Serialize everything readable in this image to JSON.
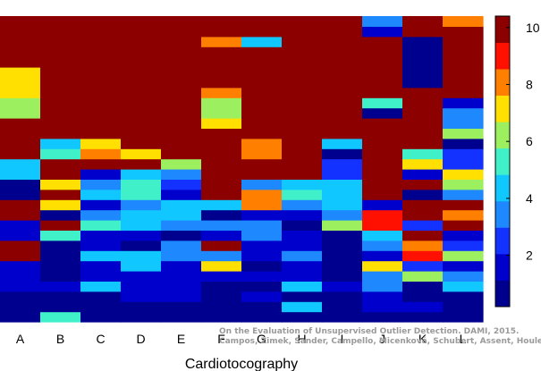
{
  "chart_data": {
    "type": "heatmap",
    "title": "",
    "xlabel": "Cardiotocography",
    "ylabel": "",
    "categories": [
      "A",
      "B",
      "C",
      "D",
      "E",
      "F",
      "G",
      "H",
      "I",
      "J",
      "K",
      "L"
    ],
    "colorbar": {
      "min": 0.2,
      "max": 10.4,
      "ticks": [
        2,
        4,
        6,
        8,
        10
      ],
      "colors": [
        "#00008f",
        "#0000cc",
        "#1432ff",
        "#1e88ff",
        "#10c8ff",
        "#40f0c8",
        "#9cf060",
        "#ffe000",
        "#ff8000",
        "#ff1000",
        "#8c0000"
      ]
    },
    "row_count": 30,
    "columns": [
      [
        0.2,
        0.2,
        0.2,
        1.5,
        1.5,
        1.5,
        10.4,
        10.4,
        2,
        2,
        10.4,
        10,
        0.2,
        0.2,
        4.7,
        4,
        10.4,
        10.4,
        10.4,
        10.4,
        6,
        6,
        7.5,
        7.5,
        7.5,
        10.4,
        10.4,
        10.4,
        10,
        10.4
      ],
      [
        5,
        0.4,
        1,
        1.2,
        1,
        0.7,
        0.7,
        0.8,
        5,
        10.4,
        0.4,
        7,
        10.4,
        6.7,
        10.4,
        10.4,
        5,
        4.5,
        10.4,
        10.4,
        10.4,
        10.4,
        10.4,
        10.4,
        10.4,
        9.6,
        10.4,
        10.4,
        10.4,
        10.4
      ],
      [
        0.2,
        0.2,
        0.2,
        4,
        1.2,
        1.2,
        4.5,
        2,
        1.6,
        5.5,
        3,
        1.5,
        4.5,
        3.5,
        1.5,
        10,
        8,
        7,
        10.4,
        10.4,
        10.4,
        10.4,
        10.4,
        10.4,
        10.4,
        10.4,
        10.4,
        10.4,
        10.4,
        10.4
      ],
      [
        0.2,
        0.2,
        1.5,
        1.2,
        1.3,
        4.3,
        4.3,
        1,
        2,
        4.5,
        4,
        3.8,
        5.5,
        5.5,
        4.3,
        10.4,
        7,
        10.4,
        10.4,
        10.4,
        10.4,
        10.4,
        10.4,
        10.4,
        10.4,
        10.4,
        10.4,
        10.4,
        10.4,
        10.4
      ],
      [
        0.2,
        0.2,
        1.2,
        1.2,
        1.2,
        1.5,
        3,
        3.5,
        1,
        3.5,
        4,
        4.2,
        1.7,
        2.5,
        3.5,
        6.5,
        10,
        10.4,
        10.4,
        10.4,
        10.4,
        10.4,
        10.4,
        10.4,
        10.4,
        10.4,
        10.4,
        10.4,
        10.4,
        10.4
      ],
      [
        0.2,
        0.2,
        0.2,
        0.2,
        2,
        7.5,
        3.5,
        10.4,
        1.5,
        3.5,
        0.6,
        4.2,
        10.4,
        10.4,
        10.4,
        10.4,
        10.4,
        10,
        10.4,
        7,
        6.5,
        6.5,
        8,
        10.4,
        10.4,
        10.4,
        10.4,
        8,
        10.4,
        10.4
      ],
      [
        0.2,
        0.2,
        1.5,
        1,
        1.2,
        1,
        1.5,
        1.5,
        3,
        3.5,
        2,
        8,
        8,
        3.5,
        10.4,
        10.4,
        8,
        8,
        10.4,
        10.4,
        10.4,
        10.4,
        10.4,
        10.4,
        10.4,
        10.4,
        10.4,
        4.5,
        10.4,
        10.4
      ],
      [
        0.2,
        4.2,
        0.2,
        4.5,
        1.2,
        1.6,
        3.8,
        1.5,
        1.5,
        0.7,
        1.5,
        3,
        5.5,
        4,
        10.4,
        10.4,
        10,
        10.4,
        10.4,
        10.4,
        10.4,
        10.4,
        10.4,
        10.4,
        10.4,
        10.4,
        10.4,
        10.4,
        10.4,
        10.4
      ],
      [
        0.2,
        0.2,
        0.2,
        1.5,
        0.5,
        0.5,
        0.5,
        0.5,
        0.5,
        6,
        3,
        4.2,
        4.4,
        4.7,
        2.5,
        2.5,
        1,
        4.3,
        10.4,
        10.4,
        10.4,
        10.4,
        10.4,
        10.4,
        10.4,
        10.4,
        10.4,
        10.4,
        10,
        10.4
      ],
      [
        0.2,
        2,
        1.2,
        3.5,
        3.5,
        7,
        1.2,
        3,
        4.5,
        9,
        9,
        2,
        10,
        10.4,
        10.4,
        10.4,
        10.4,
        10.4,
        10.4,
        10.4,
        0.5,
        5.5,
        10.4,
        10.4,
        10,
        10.4,
        10.4,
        10.4,
        2,
        3
      ],
      [
        0.2,
        2,
        0.2,
        0.2,
        6.5,
        2.5,
        9,
        8,
        10.4,
        2.5,
        10.4,
        10.4,
        1,
        10,
        1.5,
        7,
        5.5,
        10.4,
        10.4,
        10.4,
        10.4,
        10.4,
        10.4,
        0.2,
        0.2,
        0.2,
        0.2,
        0.2,
        10.4,
        10.4
      ],
      [
        0.2,
        0.2,
        0.2,
        4,
        3,
        2,
        6,
        2.5,
        1.5,
        10,
        8.5,
        10,
        3,
        6,
        7.5,
        2.5,
        2.5,
        0.2,
        6,
        3.5,
        3.5,
        2,
        10.4,
        10.4,
        10.4,
        10.4,
        10.4,
        10.4,
        10.4,
        8
      ]
    ],
    "annotations": [
      "On the Evaluation of Unsupervised Outlier Detection. DAMI, 2015.",
      "Campos, Zimek, Sander, Campello, Micenková, Schubert, Assent, Houle"
    ]
  }
}
